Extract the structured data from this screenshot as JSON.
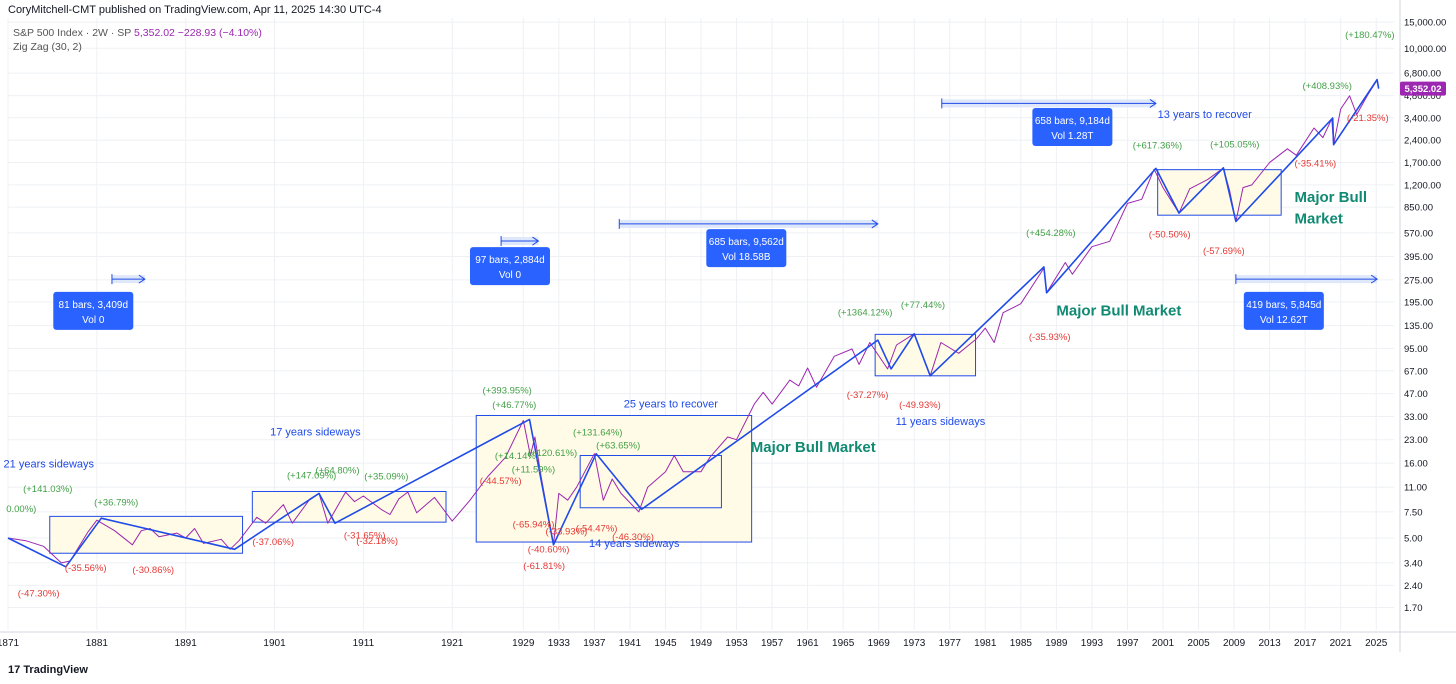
{
  "header": {
    "published_by": "CoryMitchell-CMT published on TradingView.com, Apr 11, 2025 14:30 UTC-4"
  },
  "legend": {
    "symbol": "S&P 500 Index · 2W · SP",
    "values": "5,352.02  −228.93 (−4.10%)",
    "indicator": "Zig Zag (30, 2)"
  },
  "branding": {
    "logo_text": "TradingView",
    "logo_mark": "17"
  },
  "chart_data": {
    "type": "line",
    "title": "",
    "log_scale": true,
    "grid": true,
    "x_range": [
      1871,
      2027
    ],
    "y_range": [
      1.2,
      16000
    ],
    "x_ticks": [
      1871,
      1881,
      1891,
      1901,
      1911,
      1921,
      1929,
      1933,
      1937,
      1941,
      1945,
      1949,
      1953,
      1957,
      1961,
      1965,
      1969,
      1973,
      1977,
      1981,
      1985,
      1989,
      1993,
      1997,
      2001,
      2005,
      2009,
      2013,
      2017,
      2021,
      2025
    ],
    "y_ticks": [
      {
        "v": 1.7,
        "label": "1.70"
      },
      {
        "v": 2.4,
        "label": "2.40"
      },
      {
        "v": 3.4,
        "label": "3.40"
      },
      {
        "v": 5,
        "label": "5.00"
      },
      {
        "v": 7.5,
        "label": "7.50"
      },
      {
        "v": 11,
        "label": "11.00"
      },
      {
        "v": 16,
        "label": "16.00"
      },
      {
        "v": 23,
        "label": "23.00"
      },
      {
        "v": 33,
        "label": "33.00"
      },
      {
        "v": 47,
        "label": "47.00"
      },
      {
        "v": 67,
        "label": "67.00"
      },
      {
        "v": 95,
        "label": "95.00"
      },
      {
        "v": 135,
        "label": "135.00"
      },
      {
        "v": 195,
        "label": "195.00"
      },
      {
        "v": 275,
        "label": "275.00"
      },
      {
        "v": 395,
        "label": "395.00"
      },
      {
        "v": 570,
        "label": "570.00"
      },
      {
        "v": 850,
        "label": "850.00"
      },
      {
        "v": 1200,
        "label": "1,200.00"
      },
      {
        "v": 1700,
        "label": "1,700.00"
      },
      {
        "v": 2400,
        "label": "2,400.00"
      },
      {
        "v": 3400,
        "label": "3,400.00"
      },
      {
        "v": 4800,
        "label": "4,800.00"
      },
      {
        "v": 6800,
        "label": "6,800.00"
      },
      {
        "v": 10000,
        "label": "10,000.00"
      },
      {
        "v": 15000,
        "label": "15,000.00"
      }
    ],
    "price_badge": {
      "value": 5352.02,
      "label": "5,352.02"
    },
    "series": [
      {
        "name": "S&P 500 Index",
        "color": "#9c27b0",
        "points": [
          [
            1871,
            5.0
          ],
          [
            1873,
            4.8
          ],
          [
            1875,
            4.4
          ],
          [
            1877,
            3.4
          ],
          [
            1878,
            3.5
          ],
          [
            1880,
            5.5
          ],
          [
            1881,
            6.6
          ],
          [
            1883,
            5.6
          ],
          [
            1885,
            4.5
          ],
          [
            1886,
            5.6
          ],
          [
            1887,
            5.8
          ],
          [
            1888,
            5.1
          ],
          [
            1890,
            5.4
          ],
          [
            1891,
            5.0
          ],
          [
            1892,
            5.8
          ],
          [
            1893,
            4.6
          ],
          [
            1895,
            4.9
          ],
          [
            1896,
            4.2
          ],
          [
            1897,
            4.8
          ],
          [
            1899,
            6.9
          ],
          [
            1900,
            6.3
          ],
          [
            1902,
            8.4
          ],
          [
            1903,
            6.3
          ],
          [
            1905,
            9.2
          ],
          [
            1906,
            10.0
          ],
          [
            1907,
            6.3
          ],
          [
            1909,
            10.2
          ],
          [
            1910,
            8.8
          ],
          [
            1911,
            9.6
          ],
          [
            1913,
            7.8
          ],
          [
            1914,
            7.2
          ],
          [
            1915,
            9.2
          ],
          [
            1916,
            10.2
          ],
          [
            1917,
            7.4
          ],
          [
            1919,
            9.4
          ],
          [
            1921,
            6.5
          ],
          [
            1923,
            9.0
          ],
          [
            1925,
            13.0
          ],
          [
            1927,
            17.5
          ],
          [
            1929,
            31.0
          ],
          [
            1929.8,
            18.0
          ],
          [
            1930.3,
            24.0
          ],
          [
            1931,
            13.0
          ],
          [
            1932.4,
            4.5
          ],
          [
            1933,
            10.0
          ],
          [
            1934,
            9.0
          ],
          [
            1935,
            11.0
          ],
          [
            1937,
            18.5
          ],
          [
            1938,
            9.0
          ],
          [
            1939,
            12.5
          ],
          [
            1940,
            10.0
          ],
          [
            1942,
            7.5
          ],
          [
            1943,
            11.0
          ],
          [
            1945,
            14.0
          ],
          [
            1946,
            18.0
          ],
          [
            1947,
            14.0
          ],
          [
            1949,
            14.0
          ],
          [
            1950,
            17.5
          ],
          [
            1952,
            24.0
          ],
          [
            1953,
            23.0
          ],
          [
            1955,
            40.0
          ],
          [
            1956,
            48.0
          ],
          [
            1957,
            40.0
          ],
          [
            1959,
            58.0
          ],
          [
            1960,
            53.0
          ],
          [
            1961,
            70.0
          ],
          [
            1962,
            52.0
          ],
          [
            1964,
            84.0
          ],
          [
            1966,
            94.0
          ],
          [
            1966.8,
            74.0
          ],
          [
            1968,
            104.0
          ],
          [
            1970,
            69.0
          ],
          [
            1971,
            100.0
          ],
          [
            1973,
            119.0
          ],
          [
            1974.8,
            62.0
          ],
          [
            1976,
            104.0
          ],
          [
            1978,
            88.0
          ],
          [
            1980,
            110.0
          ],
          [
            1981,
            130.0
          ],
          [
            1982,
            104.0
          ],
          [
            1983,
            165.0
          ],
          [
            1985,
            190.0
          ],
          [
            1987.6,
            330.0
          ],
          [
            1987.9,
            225.0
          ],
          [
            1990,
            360.0
          ],
          [
            1990.8,
            300.0
          ],
          [
            1993,
            460.0
          ],
          [
            1995,
            500.0
          ],
          [
            1997,
            900.0
          ],
          [
            1998.6,
            960.0
          ],
          [
            2000,
            1530.0
          ],
          [
            2001,
            1150.0
          ],
          [
            2002.8,
            775.0
          ],
          [
            2004,
            1130.0
          ],
          [
            2006,
            1300.0
          ],
          [
            2007.8,
            1560.0
          ],
          [
            2008.5,
            1100.0
          ],
          [
            2009.2,
            680.0
          ],
          [
            2010,
            1150.0
          ],
          [
            2011,
            1200.0
          ],
          [
            2013,
            1700.0
          ],
          [
            2015,
            2100.0
          ],
          [
            2016,
            1900.0
          ],
          [
            2018,
            2900.0
          ],
          [
            2019,
            2500.0
          ],
          [
            2020,
            3350.0
          ],
          [
            2020.2,
            2240.0
          ],
          [
            2021,
            3900.0
          ],
          [
            2022,
            4780.0
          ],
          [
            2022.8,
            3580.0
          ],
          [
            2024,
            4800.0
          ],
          [
            2025.1,
            6100.0
          ],
          [
            2025.28,
            5352.0
          ]
        ]
      },
      {
        "name": "Zig Zag (30, 2)",
        "color": "#1f4be8",
        "points": [
          [
            1871,
            5.0
          ],
          [
            1877.5,
            3.2
          ],
          [
            1881.5,
            6.8
          ],
          [
            1896.5,
            4.2
          ],
          [
            1906,
            10.0
          ],
          [
            1907.8,
            6.3
          ],
          [
            1929.7,
            31.5
          ],
          [
            1932.4,
            4.5
          ],
          [
            1937.2,
            18.5
          ],
          [
            1942.3,
            7.8
          ],
          [
            1968.9,
            108.0
          ],
          [
            1970.4,
            69.0
          ],
          [
            1973,
            119.0
          ],
          [
            1974.8,
            62.0
          ],
          [
            1987.6,
            336.0
          ],
          [
            1987.9,
            225.0
          ],
          [
            2000.2,
            1550.0
          ],
          [
            2002.8,
            775.0
          ],
          [
            2007.8,
            1565.0
          ],
          [
            2009.2,
            680.0
          ],
          [
            2020.1,
            3390.0
          ],
          [
            2020.2,
            2240.0
          ],
          [
            2025.1,
            6150.0
          ],
          [
            2025.28,
            5352.0
          ]
        ]
      }
    ],
    "ranges": [
      {
        "x": [
          1875.7,
          1897.4
        ],
        "y": [
          3.95,
          7.0
        ]
      },
      {
        "x": [
          1898.5,
          1920.3
        ],
        "y": [
          6.4,
          10.3
        ]
      },
      {
        "x": [
          1923.7,
          1954.7
        ],
        "y": [
          4.7,
          33.5
        ]
      },
      {
        "x": [
          1935.4,
          1951.3
        ],
        "y": [
          8.0,
          18.0
        ]
      },
      {
        "x": [
          1968.6,
          1979.9
        ],
        "y": [
          62.0,
          118.0
        ]
      },
      {
        "x": [
          2000.4,
          2014.3
        ],
        "y": [
          750.0,
          1520.0
        ]
      }
    ],
    "ranges_style": {
      "fill": "#fffbe6",
      "stroke": "#1f4be8"
    },
    "measure_arrows": [
      {
        "x": [
          1882.7,
          1886.4
        ],
        "y": 278
      },
      {
        "x": [
          1926.5,
          1930.7
        ],
        "y": 502
      },
      {
        "x": [
          1939.8,
          1968.9
        ],
        "y": 655
      },
      {
        "x": [
          1976.1,
          2000.2
        ],
        "y": 4250
      },
      {
        "x": [
          2009.2,
          2025.1
        ],
        "y": 278
      }
    ],
    "range_labels": [
      {
        "x": 1880.6,
        "y": 170,
        "lines": [
          "81 bars, 3,409d",
          "Vol 0"
        ]
      },
      {
        "x": 1927.5,
        "y": 340,
        "lines": [
          "97 bars, 2,884d",
          "Vol 0"
        ]
      },
      {
        "x": 1954.1,
        "y": 450,
        "lines": [
          "685 bars, 9,562d",
          "Vol 18.58B"
        ]
      },
      {
        "x": 1990.8,
        "y": 2950,
        "lines": [
          "658 bars, 9,184d",
          "Vol 1.28T"
        ]
      },
      {
        "x": 2014.6,
        "y": 170,
        "lines": [
          "419 bars, 5,845d",
          "Vol 12.62T"
        ]
      }
    ],
    "range_label_color": "#2962ff",
    "annotations": [
      {
        "text": "21 years sideways",
        "x": 1870.5,
        "y": 15.0,
        "color": "#1f4be8",
        "size": 11
      },
      {
        "text": "17 years sideways",
        "x": 1900.5,
        "y": 24.5,
        "color": "#1f4be8",
        "size": 11
      },
      {
        "text": "25 years to recover",
        "x": 1940.3,
        "y": 38.0,
        "color": "#1f4be8",
        "size": 11
      },
      {
        "text": "14 years sideways",
        "x": 1936.4,
        "y": 4.35,
        "color": "#1f4be8",
        "size": 11
      },
      {
        "text": "11 years sideways",
        "x": 1970.9,
        "y": 29.0,
        "color": "#1f4be8",
        "size": 11
      },
      {
        "text": "13 years to recover",
        "x": 2000.4,
        "y": 3400,
        "color": "#1f4be8",
        "size": 11
      },
      {
        "text": "Major Bull Market",
        "x": 1954.6,
        "y": 19.0,
        "color": "#118a73",
        "size": 15
      },
      {
        "text": "Major Bull Market",
        "x": 1989.0,
        "y": 158.0,
        "color": "#118a73",
        "size": 15
      },
      {
        "text": "Major Bull",
        "x": 2015.8,
        "y": 920,
        "color": "#118a73",
        "size": 15
      },
      {
        "text": "Market",
        "x": 2015.8,
        "y": 660,
        "color": "#118a73",
        "size": 15
      }
    ],
    "pct_labels": [
      {
        "text": "0.00%)",
        "x": 1870.8,
        "y": 7.5,
        "color": "#43a047"
      },
      {
        "text": "(+141.03%)",
        "x": 1872.7,
        "y": 10.2,
        "color": "#43a047"
      },
      {
        "text": "(+36.79%)",
        "x": 1880.7,
        "y": 8.3,
        "color": "#43a047"
      },
      {
        "text": "(+147.09%)",
        "x": 1902.4,
        "y": 12.6,
        "color": "#43a047"
      },
      {
        "text": "(+64.80%)",
        "x": 1905.6,
        "y": 13.6,
        "color": "#43a047"
      },
      {
        "text": "(+35.09%)",
        "x": 1911.1,
        "y": 12.4,
        "color": "#43a047"
      },
      {
        "text": "(+393.95%)",
        "x": 1924.4,
        "y": 47.0,
        "color": "#43a047"
      },
      {
        "text": "(+46.77%)",
        "x": 1925.5,
        "y": 37.5,
        "color": "#43a047"
      },
      {
        "text": "(+131.64%)",
        "x": 1934.6,
        "y": 24.6,
        "color": "#43a047"
      },
      {
        "text": "(+120.61%)",
        "x": 1929.5,
        "y": 17.8,
        "color": "#43a047"
      },
      {
        "text": "(+14.14%)",
        "x": 1925.8,
        "y": 17.0,
        "color": "#43a047"
      },
      {
        "text": "(+63.65%)",
        "x": 1937.2,
        "y": 20.0,
        "color": "#43a047"
      },
      {
        "text": "(+11.59%)",
        "x": 1927.7,
        "y": 13.8,
        "color": "#43a047"
      },
      {
        "text": "(+1364.12%)",
        "x": 1964.4,
        "y": 158.0,
        "color": "#43a047"
      },
      {
        "text": "(+77.44%)",
        "x": 1971.5,
        "y": 178.0,
        "color": "#43a047"
      },
      {
        "text": "(+454.28%)",
        "x": 1985.6,
        "y": 545.0,
        "color": "#43a047"
      },
      {
        "text": "(+617.36%)",
        "x": 1997.6,
        "y": 2110,
        "color": "#43a047"
      },
      {
        "text": "(+105.05%)",
        "x": 2006.3,
        "y": 2140,
        "color": "#43a047"
      },
      {
        "text": "(+408.93%)",
        "x": 2016.7,
        "y": 5300,
        "color": "#43a047"
      },
      {
        "text": "(+180.47%)",
        "x": 2021.5,
        "y": 11750,
        "color": "#43a047"
      },
      {
        "text": "(-47.30%)",
        "x": 1872.1,
        "y": 2.02,
        "color": "#e53935"
      },
      {
        "text": "(-35.56%)",
        "x": 1877.4,
        "y": 3.0,
        "color": "#e53935"
      },
      {
        "text": "(-30.86%)",
        "x": 1885.0,
        "y": 2.9,
        "color": "#e53935"
      },
      {
        "text": "(-37.06%)",
        "x": 1898.5,
        "y": 4.5,
        "color": "#e53935"
      },
      {
        "text": "(-31.65%)",
        "x": 1908.8,
        "y": 4.95,
        "color": "#e53935"
      },
      {
        "text": "(-32.18%)",
        "x": 1910.2,
        "y": 4.55,
        "color": "#e53935"
      },
      {
        "text": "(-44.57%)",
        "x": 1924.1,
        "y": 11.6,
        "color": "#e53935"
      },
      {
        "text": "(-65.94%)",
        "x": 1927.8,
        "y": 5.9,
        "color": "#e53935"
      },
      {
        "text": "(-33.93%)",
        "x": 1931.5,
        "y": 5.3,
        "color": "#e53935"
      },
      {
        "text": "(-54.47%)",
        "x": 1934.9,
        "y": 5.55,
        "color": "#e53935"
      },
      {
        "text": "(-46.30%)",
        "x": 1939.0,
        "y": 4.85,
        "color": "#e53935"
      },
      {
        "text": "(-40.60%)",
        "x": 1929.5,
        "y": 4.0,
        "color": "#e53935"
      },
      {
        "text": "(-61.81%)",
        "x": 1929.0,
        "y": 3.1,
        "color": "#e53935"
      },
      {
        "text": "(-37.27%)",
        "x": 1965.4,
        "y": 44.0,
        "color": "#e53935"
      },
      {
        "text": "(-49.93%)",
        "x": 1971.3,
        "y": 37.5,
        "color": "#e53935"
      },
      {
        "text": "(-35.93%)",
        "x": 1985.9,
        "y": 108.0,
        "color": "#e53935"
      },
      {
        "text": "(-50.50%)",
        "x": 1999.4,
        "y": 530.0,
        "color": "#e53935"
      },
      {
        "text": "(-57.69%)",
        "x": 2005.5,
        "y": 410.0,
        "color": "#e53935"
      },
      {
        "text": "(-35.41%)",
        "x": 2015.8,
        "y": 1600,
        "color": "#e53935"
      },
      {
        "text": "(-21.35%)",
        "x": 2021.7,
        "y": 3240,
        "color": "#e53935"
      }
    ]
  }
}
